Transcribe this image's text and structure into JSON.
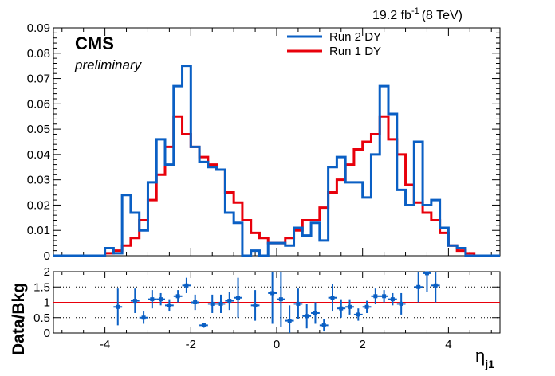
{
  "header": {
    "experiment": "CMS",
    "status": "preliminary",
    "lumi_value": "19.2 fb",
    "lumi_exp": "-1",
    "lumi_energy": "(8 TeV)"
  },
  "colors": {
    "run2": "#0a5fc4",
    "run1": "#e8000b",
    "ratio_points": "#0a5fc4",
    "ratio_line": "#e8000b"
  },
  "chart_data": [
    {
      "type": "line",
      "step": true,
      "x_label_symbol": "η",
      "x_label_sub": "j1",
      "xlim": [
        -5.2,
        5.2
      ],
      "ylim": [
        0,
        0.09
      ],
      "y_ticks": [
        "0",
        "0.01",
        "0.02",
        "0.03",
        "0.04",
        "0.05",
        "0.06",
        "0.07",
        "0.08",
        "0.09"
      ],
      "x_ticks": [
        "-4",
        "-2",
        "0",
        "2",
        "4"
      ],
      "legend_position": "top-center",
      "series": [
        {
          "name": "Run 2 DY",
          "bins": [
            [
              -5.0,
              -4.0,
              0.0
            ],
            [
              -4.0,
              -3.8,
              0.003
            ],
            [
              -3.8,
              -3.6,
              0.001
            ],
            [
              -3.6,
              -3.4,
              0.024
            ],
            [
              -3.4,
              -3.2,
              0.017
            ],
            [
              -3.2,
              -3.0,
              0.01
            ],
            [
              -3.0,
              -2.8,
              0.029
            ],
            [
              -2.8,
              -2.6,
              0.046
            ],
            [
              -2.6,
              -2.4,
              0.036
            ],
            [
              -2.4,
              -2.2,
              0.067
            ],
            [
              -2.2,
              -2.0,
              0.075
            ],
            [
              -2.0,
              -1.8,
              0.043
            ],
            [
              -1.8,
              -1.6,
              0.037
            ],
            [
              -1.6,
              -1.4,
              0.035
            ],
            [
              -1.4,
              -1.2,
              0.034
            ],
            [
              -1.2,
              -1.0,
              0.017
            ],
            [
              -1.0,
              -0.8,
              0.013
            ],
            [
              -0.8,
              -0.6,
              0.0
            ],
            [
              -0.6,
              -0.4,
              0.002
            ],
            [
              -0.4,
              -0.2,
              0.0
            ],
            [
              -0.2,
              0.0,
              0.005
            ],
            [
              0.0,
              0.2,
              0.005
            ],
            [
              0.2,
              0.4,
              0.004
            ],
            [
              0.4,
              0.6,
              0.011
            ],
            [
              0.6,
              0.8,
              0.008
            ],
            [
              0.8,
              1.0,
              0.013
            ],
            [
              1.0,
              1.2,
              0.006
            ],
            [
              1.2,
              1.4,
              0.035
            ],
            [
              1.4,
              1.6,
              0.039
            ],
            [
              1.6,
              1.8,
              0.029
            ],
            [
              1.8,
              2.0,
              0.029
            ],
            [
              2.0,
              2.2,
              0.023
            ],
            [
              2.2,
              2.4,
              0.04
            ],
            [
              2.4,
              2.6,
              0.067
            ],
            [
              2.6,
              2.8,
              0.056
            ],
            [
              2.8,
              3.0,
              0.026
            ],
            [
              3.0,
              3.2,
              0.02
            ],
            [
              3.2,
              3.4,
              0.045
            ],
            [
              3.4,
              3.6,
              0.02
            ],
            [
              3.6,
              3.8,
              0.022
            ],
            [
              3.8,
              4.0,
              0.011
            ],
            [
              4.0,
              4.2,
              0.004
            ],
            [
              4.2,
              4.4,
              0.003
            ],
            [
              4.4,
              5.0,
              0.0
            ]
          ]
        },
        {
          "name": "Run 1 DY",
          "bins": [
            [
              -5.0,
              -4.0,
              0.0
            ],
            [
              -4.0,
              -3.8,
              0.001
            ],
            [
              -3.8,
              -3.6,
              0.002
            ],
            [
              -3.6,
              -3.4,
              0.004
            ],
            [
              -3.4,
              -3.2,
              0.007
            ],
            [
              -3.2,
              -3.0,
              0.014
            ],
            [
              -3.0,
              -2.8,
              0.022
            ],
            [
              -2.8,
              -2.6,
              0.032
            ],
            [
              -2.6,
              -2.4,
              0.043
            ],
            [
              -2.4,
              -2.2,
              0.055
            ],
            [
              -2.2,
              -2.0,
              0.048
            ],
            [
              -2.0,
              -1.8,
              0.043
            ],
            [
              -1.8,
              -1.6,
              0.039
            ],
            [
              -1.6,
              -1.4,
              0.036
            ],
            [
              -1.4,
              -1.2,
              0.034
            ],
            [
              -1.2,
              -1.0,
              0.025
            ],
            [
              -1.0,
              -0.8,
              0.021
            ],
            [
              -0.8,
              -0.6,
              0.014
            ],
            [
              -0.6,
              -0.4,
              0.009
            ],
            [
              -0.4,
              -0.2,
              0.007
            ],
            [
              -0.2,
              0.0,
              0.005
            ],
            [
              0.0,
              0.2,
              0.005
            ],
            [
              0.2,
              0.4,
              0.007
            ],
            [
              0.4,
              0.6,
              0.01
            ],
            [
              0.6,
              0.8,
              0.014
            ],
            [
              0.8,
              1.0,
              0.014
            ],
            [
              1.0,
              1.2,
              0.019
            ],
            [
              1.2,
              1.4,
              0.025
            ],
            [
              1.4,
              1.6,
              0.03
            ],
            [
              1.6,
              1.8,
              0.036
            ],
            [
              1.8,
              2.0,
              0.042
            ],
            [
              2.0,
              2.2,
              0.045
            ],
            [
              2.2,
              2.4,
              0.048
            ],
            [
              2.4,
              2.6,
              0.055
            ],
            [
              2.6,
              2.8,
              0.046
            ],
            [
              2.8,
              3.0,
              0.04
            ],
            [
              3.0,
              3.2,
              0.028
            ],
            [
              3.2,
              3.4,
              0.021
            ],
            [
              3.4,
              3.6,
              0.017
            ],
            [
              3.6,
              3.8,
              0.014
            ],
            [
              3.8,
              4.0,
              0.009
            ],
            [
              4.0,
              4.2,
              0.004
            ],
            [
              4.2,
              4.4,
              0.002
            ],
            [
              4.4,
              4.6,
              0.001
            ],
            [
              4.6,
              5.0,
              0.0
            ]
          ]
        }
      ]
    },
    {
      "type": "scatter",
      "ylabel": "Data/Bkg",
      "xlim": [
        -5.2,
        5.2
      ],
      "ylim": [
        0,
        2
      ],
      "y_ticks": [
        "0",
        "0.5",
        "1",
        "1.5",
        "2"
      ],
      "reference_line": 1,
      "dotted_lines": [
        0.5,
        1.5
      ],
      "points": [
        {
          "x": -3.7,
          "xerr": 0.1,
          "y": 0.85,
          "yerr": 0.6
        },
        {
          "x": -3.3,
          "xerr": 0.1,
          "y": 1.05,
          "yerr": 0.4
        },
        {
          "x": -3.1,
          "xerr": 0.1,
          "y": 0.5,
          "yerr": 0.2
        },
        {
          "x": -2.9,
          "xerr": 0.1,
          "y": 1.1,
          "yerr": 0.3
        },
        {
          "x": -2.7,
          "xerr": 0.1,
          "y": 1.1,
          "yerr": 0.2
        },
        {
          "x": -2.5,
          "xerr": 0.1,
          "y": 0.9,
          "yerr": 0.2
        },
        {
          "x": -2.3,
          "xerr": 0.1,
          "y": 1.2,
          "yerr": 0.2
        },
        {
          "x": -2.1,
          "xerr": 0.1,
          "y": 1.55,
          "yerr": 0.25
        },
        {
          "x": -1.9,
          "xerr": 0.1,
          "y": 1.0,
          "yerr": 0.25
        },
        {
          "x": -1.7,
          "xerr": 0.1,
          "y": 0.25,
          "yerr": 0.08
        },
        {
          "x": -1.5,
          "xerr": 0.1,
          "y": 0.95,
          "yerr": 0.3
        },
        {
          "x": -1.3,
          "xerr": 0.1,
          "y": 0.95,
          "yerr": 0.3
        },
        {
          "x": -1.1,
          "xerr": 0.1,
          "y": 1.05,
          "yerr": 0.3
        },
        {
          "x": -0.9,
          "xerr": 0.1,
          "y": 1.15,
          "yerr": 0.65
        },
        {
          "x": -0.5,
          "xerr": 0.1,
          "y": 0.9,
          "yerr": 0.5
        },
        {
          "x": -0.1,
          "xerr": 0.1,
          "y": 1.3,
          "yerr": 1.0
        },
        {
          "x": 0.1,
          "xerr": 0.1,
          "y": 1.1,
          "yerr": 0.9
        },
        {
          "x": 0.3,
          "xerr": 0.1,
          "y": 0.4,
          "yerr": 0.5
        },
        {
          "x": 0.5,
          "xerr": 0.1,
          "y": 0.95,
          "yerr": 0.5
        },
        {
          "x": 0.7,
          "xerr": 0.1,
          "y": 0.55,
          "yerr": 0.4
        },
        {
          "x": 0.9,
          "xerr": 0.1,
          "y": 0.65,
          "yerr": 0.35
        },
        {
          "x": 1.1,
          "xerr": 0.1,
          "y": 0.25,
          "yerr": 0.2
        },
        {
          "x": 1.3,
          "xerr": 0.1,
          "y": 1.15,
          "yerr": 0.45
        },
        {
          "x": 1.5,
          "xerr": 0.1,
          "y": 0.8,
          "yerr": 0.3
        },
        {
          "x": 1.7,
          "xerr": 0.1,
          "y": 0.85,
          "yerr": 0.25
        },
        {
          "x": 1.9,
          "xerr": 0.1,
          "y": 0.6,
          "yerr": 0.2
        },
        {
          "x": 2.1,
          "xerr": 0.1,
          "y": 0.85,
          "yerr": 0.2
        },
        {
          "x": 2.3,
          "xerr": 0.1,
          "y": 1.2,
          "yerr": 0.25
        },
        {
          "x": 2.5,
          "xerr": 0.1,
          "y": 1.2,
          "yerr": 0.2
        },
        {
          "x": 2.7,
          "xerr": 0.1,
          "y": 1.1,
          "yerr": 0.2
        },
        {
          "x": 2.9,
          "xerr": 0.1,
          "y": 0.95,
          "yerr": 0.35
        },
        {
          "x": 3.3,
          "xerr": 0.1,
          "y": 1.5,
          "yerr": 0.5
        },
        {
          "x": 3.5,
          "xerr": 0.1,
          "y": 1.95,
          "yerr": 0.6
        },
        {
          "x": 3.7,
          "xerr": 0.1,
          "y": 1.55,
          "yerr": 0.55
        }
      ]
    }
  ]
}
